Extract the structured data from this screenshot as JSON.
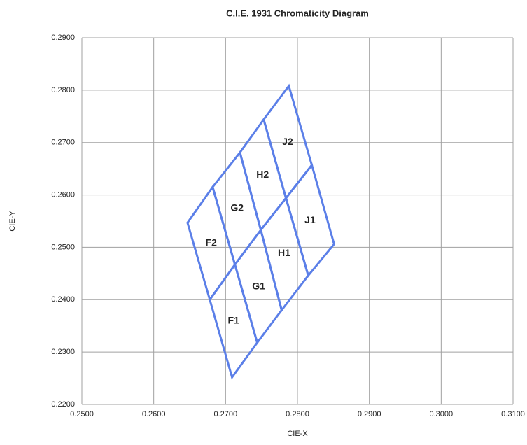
{
  "chart_data": {
    "type": "polygon",
    "title": "C.I.E. 1931 Chromaticity Diagram",
    "x_label": "CIE-X",
    "y_label": "CIE-Y",
    "color": "#5b7fe8",
    "grid": true,
    "xlim": [
      0.25,
      0.31
    ],
    "ylim": [
      0.22,
      0.29
    ],
    "xticks": [
      {
        "value": 0.25,
        "label": "0.2500"
      },
      {
        "value": 0.26,
        "label": "0.2600"
      },
      {
        "value": 0.27,
        "label": "0.2700"
      },
      {
        "value": 0.28,
        "label": "0.2800"
      },
      {
        "value": 0.29,
        "label": "0.2900"
      },
      {
        "value": 0.3,
        "label": "0.3000"
      },
      {
        "value": 0.31,
        "label": "0.3100"
      }
    ],
    "yticks": [
      {
        "value": 0.22,
        "label": "0.2200"
      },
      {
        "value": 0.23,
        "label": "0.2300"
      },
      {
        "value": 0.24,
        "label": "0.2400"
      },
      {
        "value": 0.25,
        "label": "0.2500"
      },
      {
        "value": 0.26,
        "label": "0.2600"
      },
      {
        "value": 0.27,
        "label": "0.2700"
      },
      {
        "value": 0.28,
        "label": "0.2800"
      },
      {
        "value": 0.29,
        "label": "0.2900"
      }
    ],
    "bins": [
      {
        "name": "F1",
        "x": [
          0.2709,
          0.2744,
          0.2713,
          0.2678
        ],
        "y": [
          0.2252,
          0.2318,
          0.2467,
          0.24
        ]
      },
      {
        "name": "F2",
        "x": [
          0.2678,
          0.2713,
          0.2682,
          0.2647
        ],
        "y": [
          0.24,
          0.2467,
          0.2615,
          0.2547
        ]
      },
      {
        "name": "G1",
        "x": [
          0.2744,
          0.2778,
          0.2749,
          0.2713
        ],
        "y": [
          0.2318,
          0.238,
          0.2533,
          0.2467
        ]
      },
      {
        "name": "G2",
        "x": [
          0.2713,
          0.2749,
          0.272,
          0.2682
        ],
        "y": [
          0.2467,
          0.2533,
          0.2681,
          0.2615
        ]
      },
      {
        "name": "H1",
        "x": [
          0.2778,
          0.2815,
          0.2784,
          0.2749
        ],
        "y": [
          0.238,
          0.2446,
          0.2594,
          0.2533
        ]
      },
      {
        "name": "H2",
        "x": [
          0.2749,
          0.2784,
          0.2753,
          0.272
        ],
        "y": [
          0.2533,
          0.2594,
          0.2744,
          0.2681
        ]
      },
      {
        "name": "J1",
        "x": [
          0.2815,
          0.2851,
          0.282,
          0.2784
        ],
        "y": [
          0.2446,
          0.2506,
          0.2657,
          0.2594
        ]
      },
      {
        "name": "J2",
        "x": [
          0.2784,
          0.282,
          0.2788,
          0.2753
        ],
        "y": [
          0.2594,
          0.2657,
          0.2808,
          0.2744
        ]
      }
    ]
  }
}
